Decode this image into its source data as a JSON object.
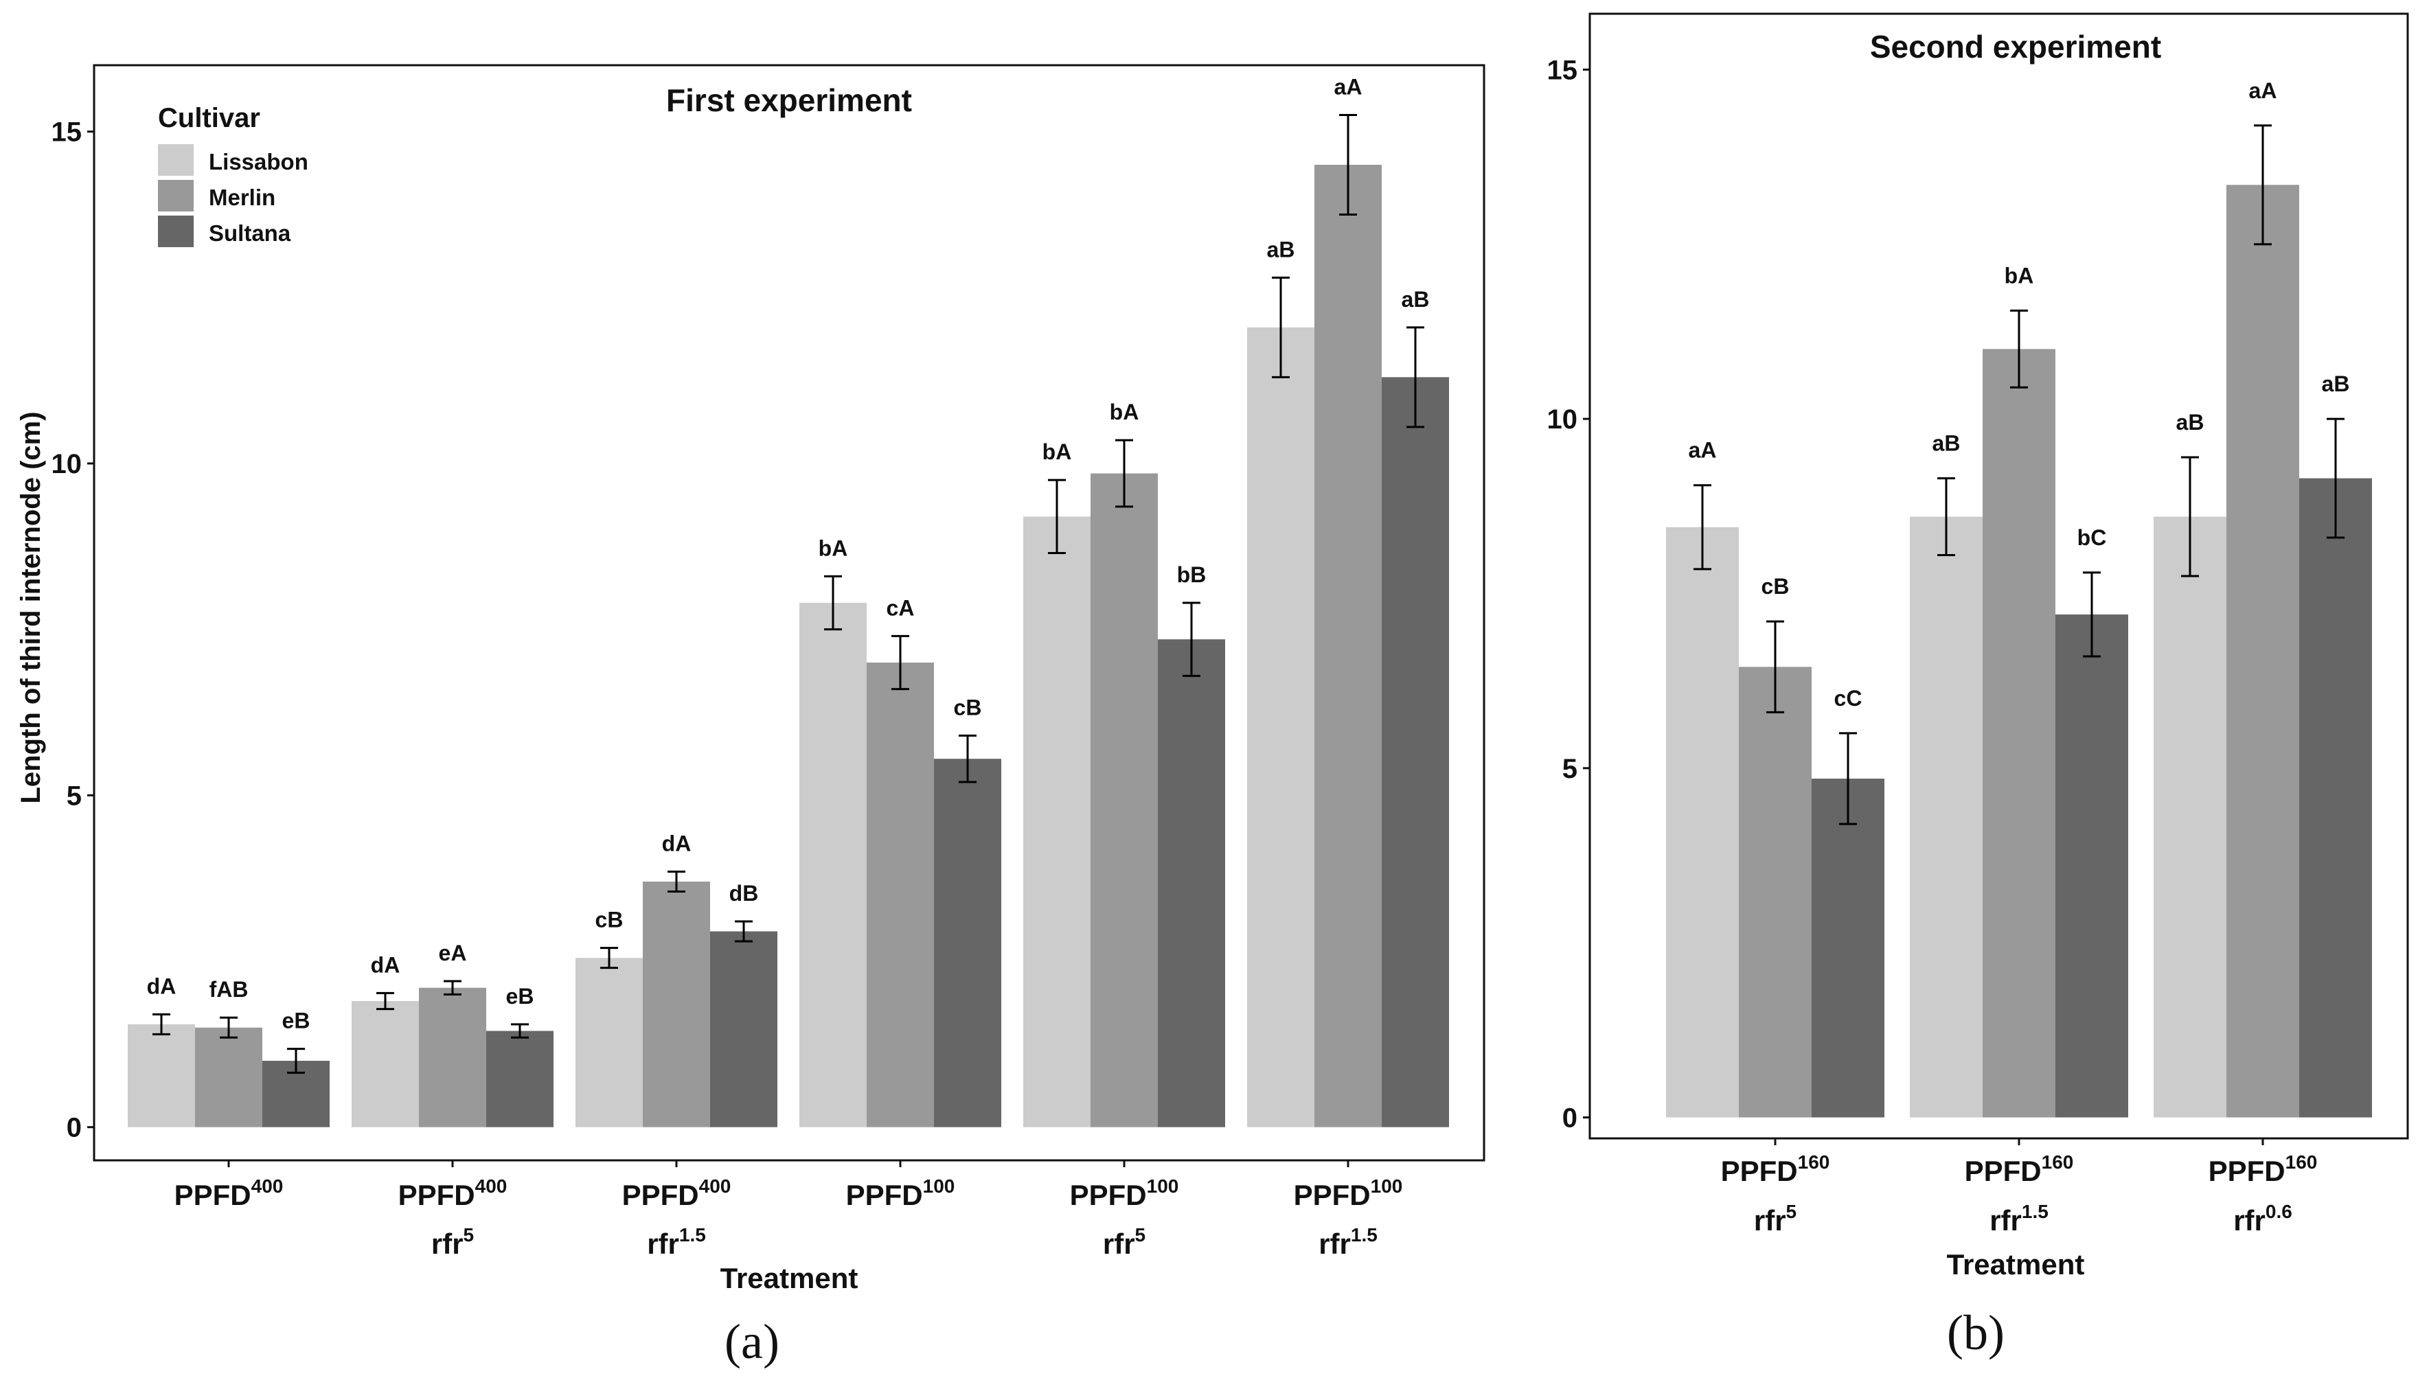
{
  "figure": {
    "panel_a_label": "(a)",
    "panel_b_label": "(b)",
    "y_axis_label": "Length of third internode (cm)",
    "x_axis_label": "Treatment"
  },
  "legend": {
    "title": "Cultivar",
    "items": [
      {
        "label": "Lissabon",
        "color": "#cccccc"
      },
      {
        "label": "Merlin",
        "color": "#999999"
      },
      {
        "label": "Sultana",
        "color": "#666666"
      }
    ]
  },
  "chart_data": [
    {
      "type": "bar",
      "title": "First experiment",
      "xlabel": "Treatment",
      "ylabel": "Length of third internode (cm)",
      "ylim": [
        -0.5,
        16
      ],
      "yticks": [
        0,
        5,
        10,
        15
      ],
      "grid": false,
      "legend_position": "top-left",
      "categories": [
        {
          "line1": "PPFD",
          "sup1": "400",
          "line2": "",
          "sup2": ""
        },
        {
          "line1": "PPFD",
          "sup1": "400",
          "line2": "rfr",
          "sup2": "5"
        },
        {
          "line1": "PPFD",
          "sup1": "400",
          "line2": "rfr",
          "sup2": "1.5"
        },
        {
          "line1": "PPFD",
          "sup1": "100",
          "line2": "",
          "sup2": ""
        },
        {
          "line1": "PPFD",
          "sup1": "100",
          "line2": "rfr",
          "sup2": "5"
        },
        {
          "line1": "PPFD",
          "sup1": "100",
          "line2": "rfr",
          "sup2": "1.5"
        }
      ],
      "series": [
        {
          "name": "Lissabon",
          "values": [
            1.55,
            1.9,
            2.55,
            7.9,
            9.2,
            12.05
          ],
          "errors": [
            0.15,
            0.12,
            0.15,
            0.4,
            0.55,
            0.75
          ],
          "labels": [
            "dA",
            "dA",
            "cB",
            "bA",
            "bA",
            "aB"
          ]
        },
        {
          "name": "Merlin",
          "values": [
            1.5,
            2.1,
            3.7,
            7.0,
            9.85,
            14.5
          ],
          "errors": [
            0.15,
            0.1,
            0.15,
            0.4,
            0.5,
            0.75
          ],
          "labels": [
            "fAB",
            "eA",
            "dA",
            "cA",
            "bA",
            "aA"
          ]
        },
        {
          "name": "Sultana",
          "values": [
            1.0,
            1.45,
            2.95,
            5.55,
            7.35,
            11.3
          ],
          "errors": [
            0.18,
            0.1,
            0.15,
            0.35,
            0.55,
            0.75
          ],
          "labels": [
            "eB",
            "eB",
            "dB",
            "cB",
            "bB",
            "aB"
          ]
        }
      ]
    },
    {
      "type": "bar",
      "title": "Second experiment",
      "xlabel": "Treatment",
      "ylabel": "",
      "ylim": [
        -0.3,
        15.8
      ],
      "yticks": [
        0,
        5,
        10,
        15
      ],
      "grid": false,
      "categories": [
        {
          "line1": "PPFD",
          "sup1": "160",
          "line2": "rfr",
          "sup2": "5"
        },
        {
          "line1": "PPFD",
          "sup1": "160",
          "line2": "rfr",
          "sup2": "1.5"
        },
        {
          "line1": "PPFD",
          "sup1": "160",
          "line2": "rfr",
          "sup2": "0.6"
        }
      ],
      "series": [
        {
          "name": "Lissabon",
          "values": [
            8.45,
            8.6,
            8.6
          ],
          "errors": [
            0.6,
            0.55,
            0.85
          ],
          "labels": [
            "aA",
            "aB",
            "aB"
          ]
        },
        {
          "name": "Merlin",
          "values": [
            6.45,
            11.0,
            13.35
          ],
          "errors": [
            0.65,
            0.55,
            0.85
          ],
          "labels": [
            "cB",
            "bA",
            "aA"
          ]
        },
        {
          "name": "Sultana",
          "values": [
            4.85,
            7.2,
            9.15
          ],
          "errors": [
            0.65,
            0.6,
            0.85
          ],
          "labels": [
            "cC",
            "bC",
            "aB"
          ]
        }
      ]
    }
  ]
}
